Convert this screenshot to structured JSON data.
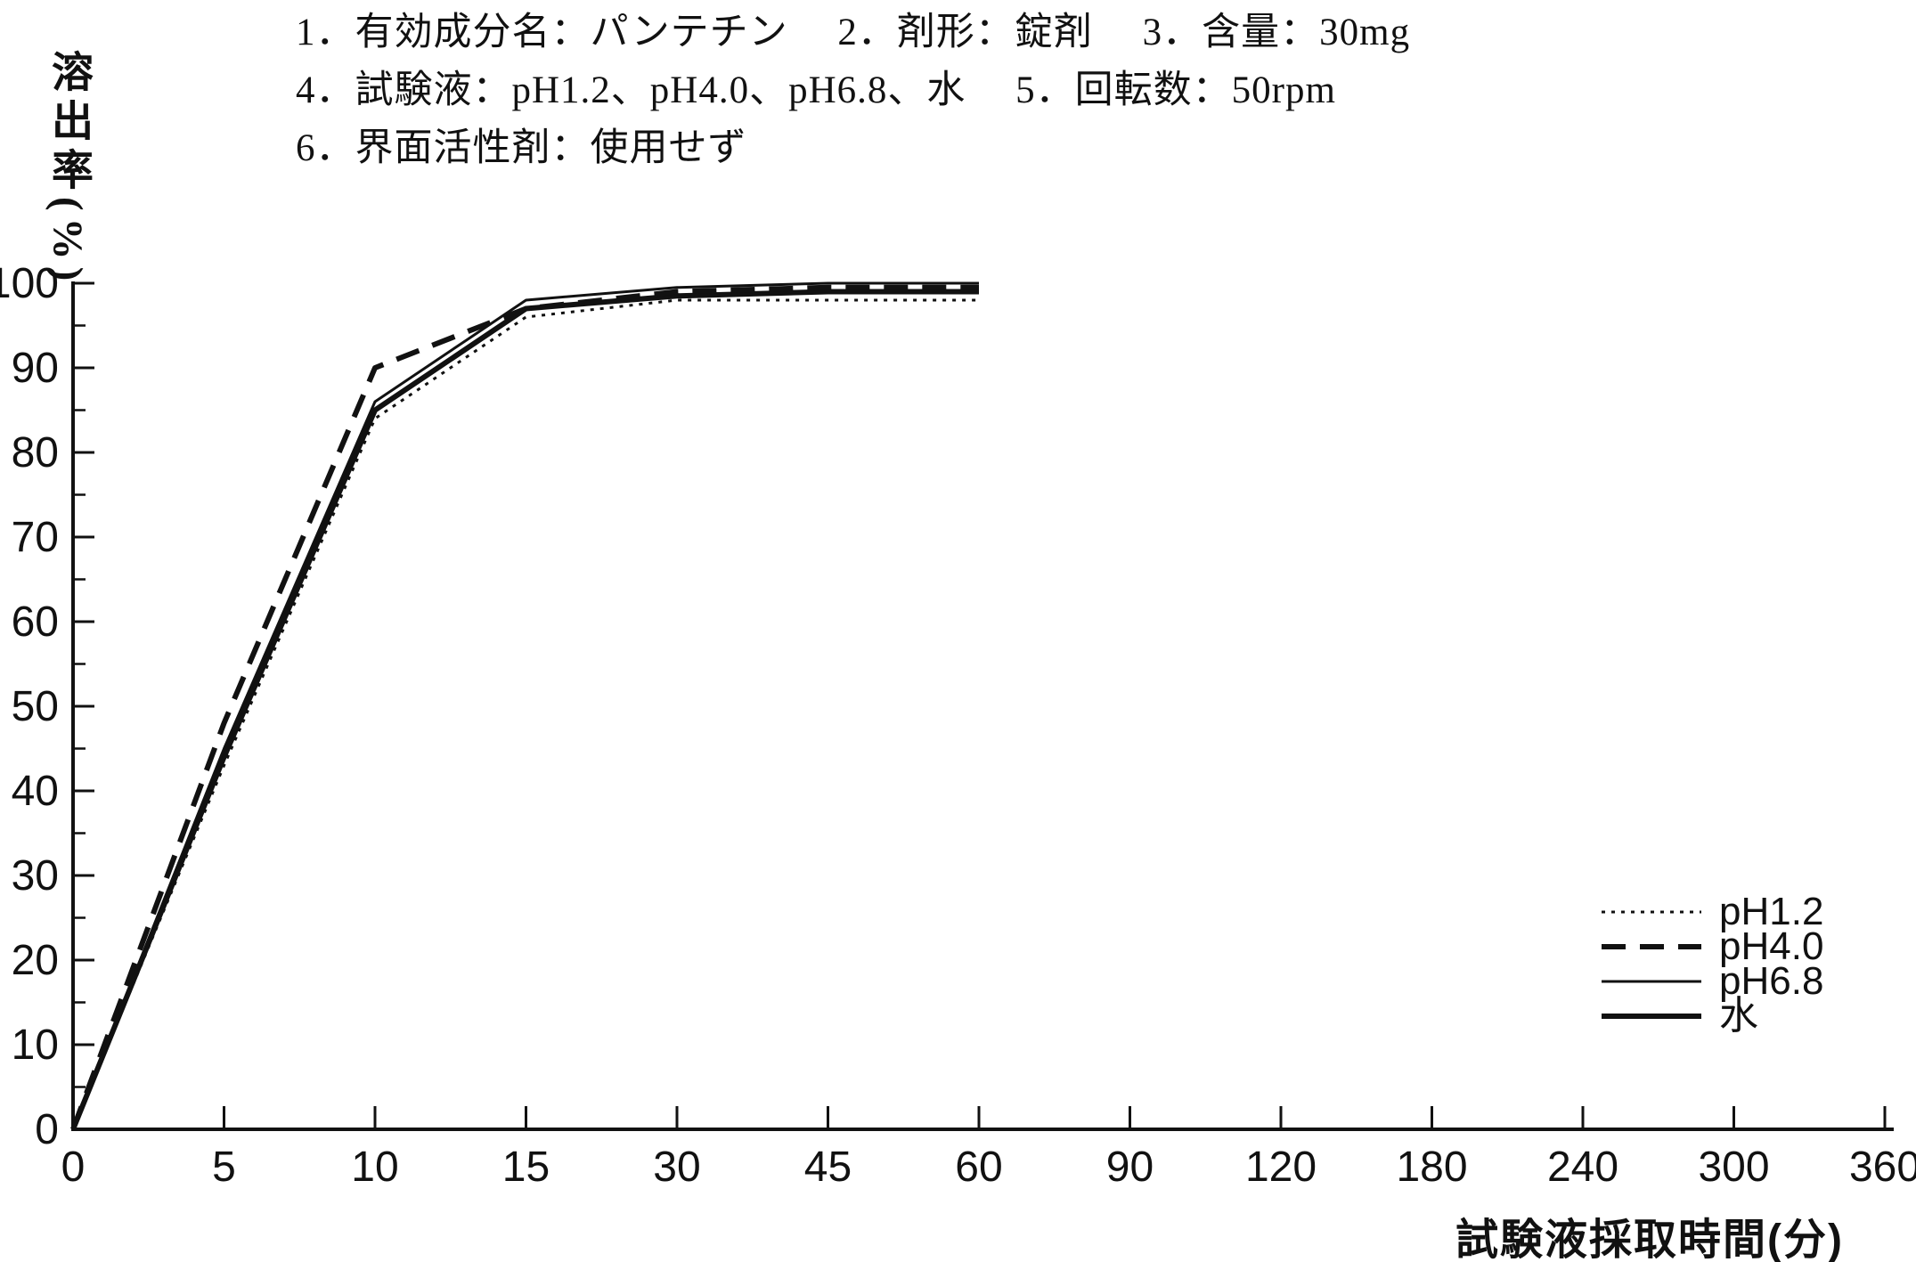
{
  "page": {
    "background": "#ffffff",
    "ink": "#111111"
  },
  "header": {
    "lines": [
      "1．有効成分名：パンテチン　 2．剤形：錠剤　 3．含量：30mg",
      "4．試験液：pH1.2、pH4.0、pH6.8、水　 5．回転数：50rpm",
      "6．界面活性剤：使用せず"
    ]
  },
  "chart_data": {
    "type": "line",
    "title": "",
    "xlabel": "試験液採取時間(分)",
    "ylabel": "溶出率(%)",
    "ylim": [
      0,
      100
    ],
    "y_major_step": 10,
    "y_minor_step": 5,
    "grid": false,
    "legend_position": "right-lower",
    "x_tick_labels": [
      "0",
      "5",
      "10",
      "15",
      "30",
      "45",
      "60",
      "90",
      "120",
      "180",
      "240",
      "300",
      "360"
    ],
    "y_tick_labels": [
      "0",
      "10",
      "20",
      "30",
      "40",
      "50",
      "60",
      "70",
      "80",
      "90",
      "100"
    ],
    "x_axis_note": "ticks equally spaced (non-linear time scale)",
    "x": [
      0,
      5,
      10,
      15,
      30,
      45,
      60
    ],
    "series": [
      {
        "name": "pH1.2",
        "style": "dotted",
        "width": "thin",
        "values": [
          0,
          43,
          84,
          96,
          98,
          98,
          98
        ]
      },
      {
        "name": "pH4.0",
        "style": "dashed",
        "width": "thick",
        "values": [
          0,
          48,
          90,
          97,
          99,
          99.5,
          99.5
        ]
      },
      {
        "name": "pH6.8",
        "style": "solid",
        "width": "thin",
        "values": [
          0,
          45,
          86,
          98,
          99.5,
          100,
          100
        ]
      },
      {
        "name": "水",
        "style": "solid",
        "width": "thick",
        "values": [
          0,
          44,
          85,
          97,
          98.5,
          99,
          99
        ]
      }
    ]
  }
}
